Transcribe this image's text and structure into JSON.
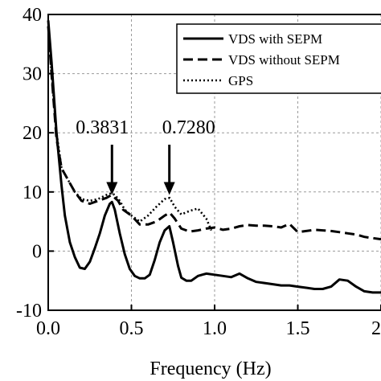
{
  "chart_data": {
    "type": "line",
    "xlabel": "Frequency (Hz)",
    "ylabel": "",
    "xlim": [
      0,
      2.0
    ],
    "ylim": [
      -10,
      40
    ],
    "xticks": [
      "0.0",
      "0.5",
      "1.0",
      "1.5",
      "2"
    ],
    "yticks": [
      "-10",
      "0",
      "10",
      "20",
      "30",
      "40"
    ],
    "grid": true,
    "legend": "top-right",
    "series": [
      {
        "name": "VDS with SEPM",
        "style": "solid",
        "x": [
          0.0,
          0.02,
          0.05,
          0.08,
          0.1,
          0.13,
          0.16,
          0.19,
          0.22,
          0.25,
          0.28,
          0.31,
          0.34,
          0.37,
          0.3831,
          0.4,
          0.43,
          0.46,
          0.49,
          0.52,
          0.55,
          0.58,
          0.61,
          0.64,
          0.67,
          0.7,
          0.728,
          0.75,
          0.78,
          0.8,
          0.83,
          0.86,
          0.9,
          0.95,
          1.0,
          1.05,
          1.1,
          1.15,
          1.2,
          1.25,
          1.3,
          1.35,
          1.4,
          1.45,
          1.5,
          1.55,
          1.6,
          1.65,
          1.7,
          1.75,
          1.8,
          1.85,
          1.9,
          1.95,
          2.0
        ],
        "y": [
          39,
          32,
          20,
          11,
          6,
          1.5,
          -1,
          -2.8,
          -3,
          -1.8,
          0.5,
          3,
          6,
          8,
          8.3,
          7,
          3,
          -0.5,
          -3,
          -4.2,
          -4.6,
          -4.6,
          -4,
          -1.5,
          1.5,
          3.5,
          4.2,
          1.5,
          -2.5,
          -4.5,
          -5,
          -5,
          -4.2,
          -3.8,
          -4,
          -4.2,
          -4.4,
          -3.8,
          -4.6,
          -5.2,
          -5.4,
          -5.6,
          -5.8,
          -5.8,
          -6,
          -6.2,
          -6.4,
          -6.4,
          -6,
          -4.8,
          -5,
          -6,
          -6.8,
          -7,
          -7
        ]
      },
      {
        "name": "VDS without SEPM",
        "style": "dashed",
        "x": [
          0.0,
          0.02,
          0.05,
          0.08,
          0.1,
          0.13,
          0.16,
          0.2,
          0.25,
          0.3,
          0.35,
          0.38,
          0.42,
          0.45,
          0.5,
          0.55,
          0.6,
          0.65,
          0.7,
          0.73,
          0.76,
          0.8,
          0.85,
          0.9,
          0.95,
          1.0,
          1.05,
          1.1,
          1.15,
          1.2,
          1.25,
          1.3,
          1.35,
          1.4,
          1.45,
          1.5,
          1.55,
          1.6,
          1.65,
          1.7,
          1.75,
          1.8,
          1.85,
          1.9,
          1.95,
          2.0
        ],
        "y": [
          38,
          30,
          19,
          14,
          13,
          11.5,
          10,
          8.5,
          8,
          8.5,
          9,
          9.5,
          8.5,
          7,
          6,
          4.5,
          4.5,
          5,
          6,
          6.5,
          5.5,
          3.8,
          3.3,
          3.5,
          3.8,
          4,
          3.6,
          3.8,
          4.2,
          4.4,
          4.3,
          4.3,
          4.2,
          4,
          4.6,
          3.2,
          3.4,
          3.6,
          3.5,
          3.4,
          3.2,
          3,
          2.8,
          2.4,
          2.2,
          2
        ]
      },
      {
        "name": "GPS",
        "style": "dotted",
        "x": [
          0.0,
          0.02,
          0.05,
          0.08,
          0.1,
          0.13,
          0.16,
          0.2,
          0.25,
          0.3,
          0.35,
          0.38,
          0.4,
          0.43,
          0.46,
          0.5,
          0.55,
          0.6,
          0.65,
          0.7,
          0.73,
          0.76,
          0.8,
          0.85,
          0.9,
          0.95,
          0.98
        ],
        "y": [
          38,
          30,
          20,
          14,
          13,
          11.5,
          10,
          8.8,
          8.5,
          8.8,
          9.5,
          9.8,
          9.5,
          8.5,
          7,
          6,
          5,
          6,
          7.5,
          8.8,
          9,
          7.5,
          6.2,
          6.8,
          7.2,
          5.5,
          3.5
        ]
      }
    ],
    "annotations": [
      {
        "text": "0.3831",
        "x": 0.3831,
        "y_tip": 9.5
      },
      {
        "text": "0.7280",
        "x": 0.728,
        "y_tip": 9.5
      }
    ]
  }
}
